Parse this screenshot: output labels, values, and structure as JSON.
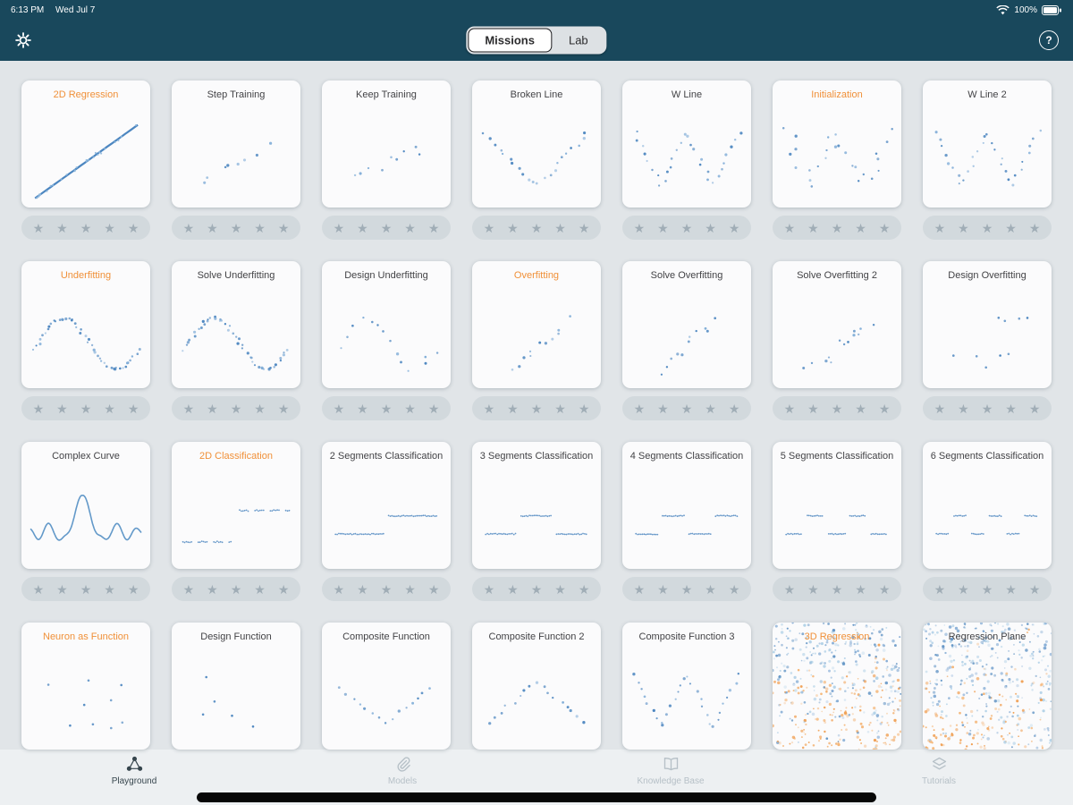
{
  "status_bar": {
    "time": "6:13 PM",
    "date": "Wed Jul 7",
    "battery": "100%"
  },
  "header": {
    "segments": [
      {
        "label": "Missions",
        "selected": true
      },
      {
        "label": "Lab",
        "selected": false
      }
    ],
    "help_label": "?"
  },
  "star_glyph": "★",
  "colors": {
    "header_teal": "#19485c",
    "accent_orange": "#f09038",
    "dot_blue": "#4c86c0",
    "dense_orange": "#ee8f35",
    "star_gray": "#a0adb6"
  },
  "missions": [
    {
      "title": "2D Regression",
      "accent": true,
      "pattern": "fit-line",
      "stars": true
    },
    {
      "title": "Step Training",
      "accent": false,
      "pattern": "step-train",
      "stars": true
    },
    {
      "title": "Keep Training",
      "accent": false,
      "pattern": "keep-train",
      "stars": true
    },
    {
      "title": "Broken Line",
      "accent": false,
      "pattern": "v-line",
      "stars": true
    },
    {
      "title": "W Line",
      "accent": false,
      "pattern": "w-line",
      "stars": true
    },
    {
      "title": "Initialization",
      "accent": true,
      "pattern": "w-noisy",
      "stars": true
    },
    {
      "title": "W Line 2",
      "accent": false,
      "pattern": "w-line",
      "stars": true
    },
    {
      "title": "Underfitting",
      "accent": true,
      "pattern": "sine-dense",
      "stars": true
    },
    {
      "title": "Solve Underfitting",
      "accent": false,
      "pattern": "sine-dense",
      "stars": true
    },
    {
      "title": "Design Underfitting",
      "accent": false,
      "pattern": "sine-sparse",
      "stars": true
    },
    {
      "title": "Overfitting",
      "accent": true,
      "pattern": "rise-scatter",
      "stars": true
    },
    {
      "title": "Solve Overfitting",
      "accent": false,
      "pattern": "rise-scatter",
      "stars": true
    },
    {
      "title": "Solve Overfitting 2",
      "accent": false,
      "pattern": "rise-scatter2",
      "stars": true
    },
    {
      "title": "Design Overfitting",
      "accent": false,
      "pattern": "rand-sparse",
      "stars": true
    },
    {
      "title": "Complex Curve",
      "accent": false,
      "pattern": "complex-curve",
      "stars": true
    },
    {
      "title": "2D Classification",
      "accent": true,
      "pattern": "classes-2d",
      "stars": true
    },
    {
      "title": "2 Segments Classification",
      "accent": false,
      "pattern": "segments-2",
      "stars": true
    },
    {
      "title": "3 Segments Classification",
      "accent": false,
      "pattern": "segments-3",
      "stars": true
    },
    {
      "title": "4 Segments Classification",
      "accent": false,
      "pattern": "segments-4",
      "stars": true
    },
    {
      "title": "5 Segments Classification",
      "accent": false,
      "pattern": "segments-5",
      "stars": true
    },
    {
      "title": "6 Segments Classification",
      "accent": false,
      "pattern": "segments-6",
      "stars": true
    },
    {
      "title": "Neuron as Function",
      "accent": true,
      "pattern": "rand-sparse",
      "stars": false
    },
    {
      "title": "Design Function",
      "accent": false,
      "pattern": "rand-tiny",
      "stars": false
    },
    {
      "title": "Composite Function",
      "accent": false,
      "pattern": "valley",
      "stars": false
    },
    {
      "title": "Composite Function 2",
      "accent": false,
      "pattern": "peak",
      "stars": false
    },
    {
      "title": "Composite Function 3",
      "accent": false,
      "pattern": "w-line",
      "stars": false
    },
    {
      "title": "3D Regression",
      "accent": true,
      "pattern": "dense-3d",
      "stars": false
    },
    {
      "title": "Regression Plane",
      "accent": false,
      "pattern": "dense-plane",
      "stars": false
    }
  ],
  "tab_bar": {
    "items": [
      {
        "label": "Playground",
        "icon": "playground-icon",
        "active": true
      },
      {
        "label": "Models",
        "icon": "models-icon",
        "active": false
      },
      {
        "label": "Knowledge Base",
        "icon": "knowledge-icon",
        "active": false
      },
      {
        "label": "Tutorials",
        "icon": "tutorials-icon",
        "active": false
      }
    ]
  }
}
